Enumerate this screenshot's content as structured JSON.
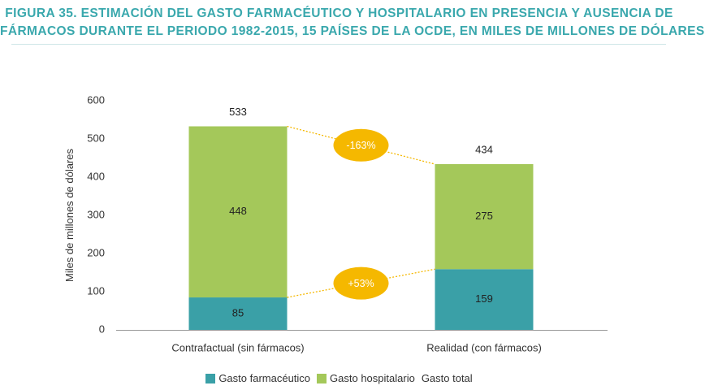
{
  "title": {
    "line1": "FIGURA 35. ESTIMACIÓN DEL GASTO FARMACÉUTICO Y HOSPITALARIO EN PRESENCIA Y AUSENCIA DE",
    "line2": "FÁRMACOS DURANTE EL PERIODO 1982-2015, 15 PAÍSES DE LA OCDE, EN MILES DE MILLONES DE DÓLARES"
  },
  "colors": {
    "title": "#3aa8ad",
    "pharma": "#3aa0a7",
    "hospital": "#a4c85a",
    "badge": "#f5b800",
    "connector": "#f5b800",
    "axis": "#999999"
  },
  "chart_data": {
    "type": "bar",
    "stacked": true,
    "categories": [
      "Contrafactual (sin fármacos)",
      "Realidad (con fármacos)"
    ],
    "series": [
      {
        "name": "Gasto farmacéutico",
        "values": [
          85,
          159
        ]
      },
      {
        "name": "Gasto hospitalario",
        "values": [
          448,
          275
        ]
      }
    ],
    "totals": [
      533,
      434
    ],
    "total_legend": "Gasto total",
    "ylabel": "Miles de millones de dólares",
    "xlabel": "",
    "ylim": [
      0,
      600
    ],
    "yticks": [
      0,
      100,
      200,
      300,
      400,
      500,
      600
    ],
    "grid": false,
    "legend_position": "bottom",
    "annotations": [
      {
        "text": "-163%",
        "between": "hospital"
      },
      {
        "text": "+53%",
        "between": "pharma"
      }
    ]
  }
}
